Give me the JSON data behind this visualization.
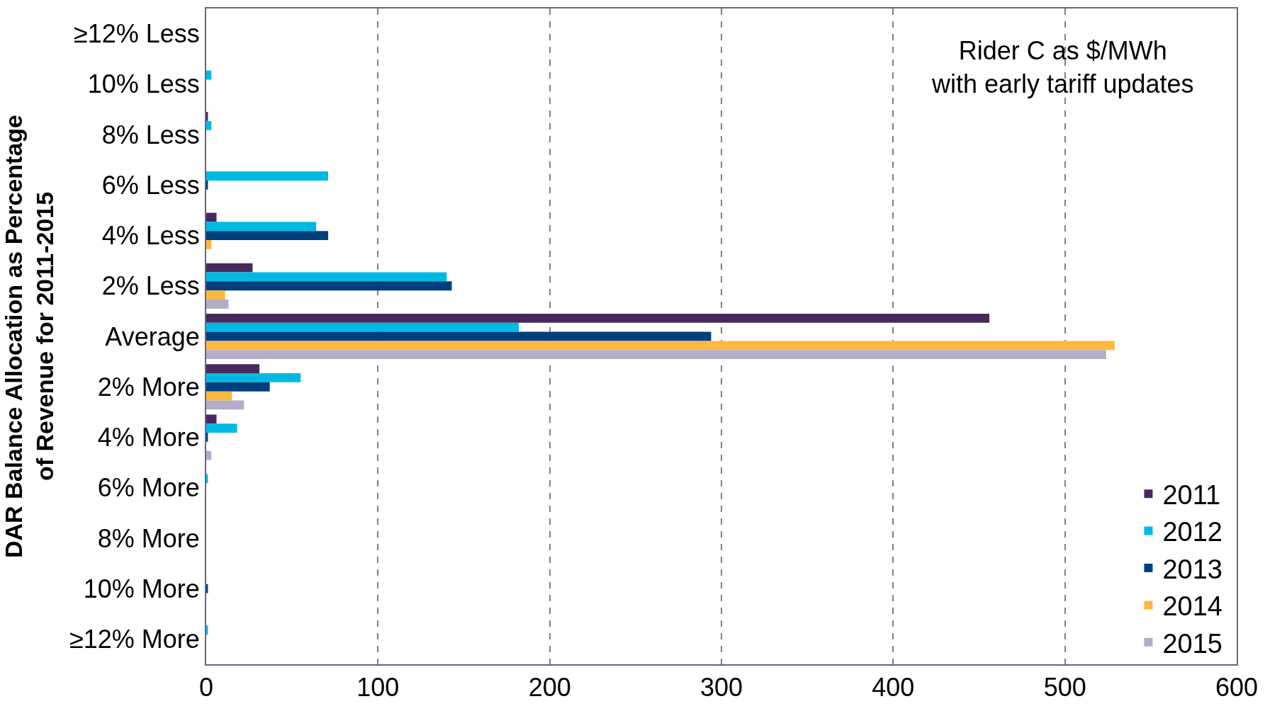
{
  "chart_data": {
    "type": "bar",
    "orientation": "horizontal",
    "ylabel": "DAR Balance Allocation as Percentage\nof Revenue for 2011-2015",
    "categories": [
      "≥12% Less",
      "10% Less",
      "8% Less",
      "6% Less",
      "4% Less",
      "2% Less",
      "Average",
      "2% More",
      "4% More",
      "6% More",
      "8% More",
      "10% More",
      "≥12% More"
    ],
    "series": [
      {
        "name": "2011",
        "color": "#472a5c",
        "values": [
          0,
          0,
          1,
          0,
          6,
          27,
          456,
          31,
          6,
          0,
          0,
          0,
          0
        ]
      },
      {
        "name": "2012",
        "color": "#00b9e3",
        "values": [
          0,
          3,
          3,
          71,
          64,
          140,
          182,
          55,
          18,
          1,
          0,
          0,
          1
        ]
      },
      {
        "name": "2013",
        "color": "#003f7d",
        "values": [
          0,
          0,
          0,
          1,
          71,
          143,
          294,
          37,
          1,
          0,
          0,
          1,
          0
        ]
      },
      {
        "name": "2014",
        "color": "#fdb840",
        "values": [
          0,
          0,
          0,
          0,
          3,
          11,
          529,
          15,
          0,
          0,
          0,
          0,
          0
        ]
      },
      {
        "name": "2015",
        "color": "#b5adc8",
        "values": [
          0,
          0,
          0,
          0,
          0,
          13,
          524,
          22,
          3,
          0,
          0,
          0,
          0
        ]
      }
    ],
    "xlim": [
      0,
      600
    ],
    "xticks": [
      0,
      100,
      200,
      300,
      400,
      500,
      600
    ],
    "grid": "x",
    "legend": "bottom right",
    "annotations": [
      "Rider C as $/MWh\nwith early tariff updates"
    ]
  }
}
